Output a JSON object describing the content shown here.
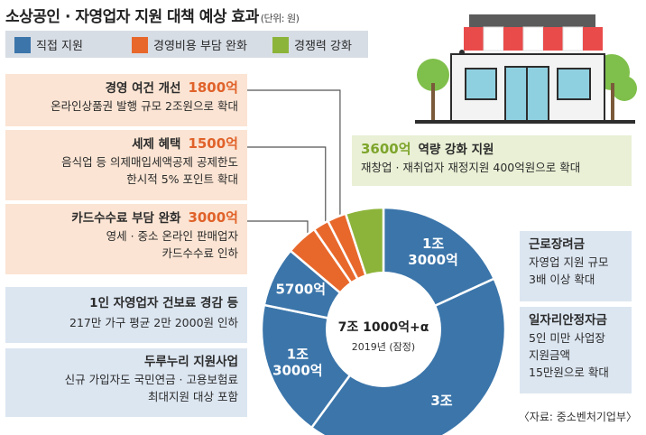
{
  "title": "소상공인 · 자영업자 지원 대책 예상 효과",
  "unit": "(단위: 원)",
  "legend": [
    {
      "label": "직접 지원",
      "color": "#3b75aa"
    },
    {
      "label": "경영비용 부담 완화",
      "color": "#e8682c"
    },
    {
      "label": "경쟁력 강화",
      "color": "#8cb43a"
    }
  ],
  "boxes": {
    "b1": {
      "head": "경영 여건 개선",
      "num": "1800억",
      "lines": [
        "온라인상품권 발행 규모 2조원으로 확대"
      ]
    },
    "b2": {
      "head": "세제 혜택",
      "num": "1500억",
      "lines": [
        "음식업 등 의제매입세액공제 공제한도",
        "한시적 5% 포인트 확대"
      ]
    },
    "b3": {
      "head": "카드수수료 부담 완화",
      "num": "3000억",
      "lines": [
        "영세 · 중소 온라인 판매업자",
        "카드수수료 인하"
      ]
    },
    "b4": {
      "head": "1인 자영업자 건보료 경감 등",
      "lines": [
        "217만 가구 평균 2만 2000원 인하"
      ]
    },
    "b5": {
      "head": "두루누리 지원사업",
      "lines": [
        "신규 가입자도 국민연금 · 고용보험료",
        "최대지원 대상 포함"
      ]
    },
    "b6": {
      "num": "3600억",
      "head": "역량 강화 지원",
      "lines": [
        "재창업 · 재취업자 재정지원 400억원으로 확대"
      ]
    },
    "b7": {
      "head": "근로장려금",
      "lines": [
        "자영업 지원 규모",
        "3배 이상 확대"
      ]
    },
    "b8": {
      "head": "일자리안정자금",
      "lines": [
        "5인 미만 사업장",
        "지원금액",
        "15만원으로 확대"
      ]
    }
  },
  "center": {
    "main": "7조 1000억+α",
    "sub": "2019년 (잠정)"
  },
  "source": "〈자료: 중소벤처기업부〉",
  "chart_data": {
    "type": "pie",
    "title": "소상공인 · 자영업자 지원 대책 예상 효과",
    "unit": "원",
    "slices": [
      {
        "label": "근로장려금",
        "display": "1조\n3000억",
        "value": 13000,
        "group": "직접 지원",
        "color": "#3b75aa"
      },
      {
        "label": "일자리안정자금",
        "display": "3조",
        "value": 30000,
        "group": "직접 지원",
        "color": "#3b75aa"
      },
      {
        "label": "두루누리 지원사업",
        "display": "1조\n3000억",
        "value": 13000,
        "group": "직접 지원",
        "color": "#3b75aa"
      },
      {
        "label": "1인 자영업자 건보료 경감 등",
        "display": "5700억",
        "value": 5700,
        "group": "직접 지원",
        "color": "#3b75aa"
      },
      {
        "label": "카드수수료 부담 완화",
        "value": 3000,
        "group": "경영비용 부담 완화",
        "color": "#e8682c"
      },
      {
        "label": "세제 혜택",
        "value": 1500,
        "group": "경영비용 부담 완화",
        "color": "#e8682c"
      },
      {
        "label": "경영 여건 개선",
        "value": 1800,
        "group": "경영비용 부담 완화",
        "color": "#e8682c"
      },
      {
        "label": "역량 강화 지원",
        "value": 3600,
        "group": "경쟁력 강화",
        "color": "#8cb43a"
      }
    ],
    "total_label": "7조 1000억+α",
    "year_label": "2019년 (잠정)"
  }
}
